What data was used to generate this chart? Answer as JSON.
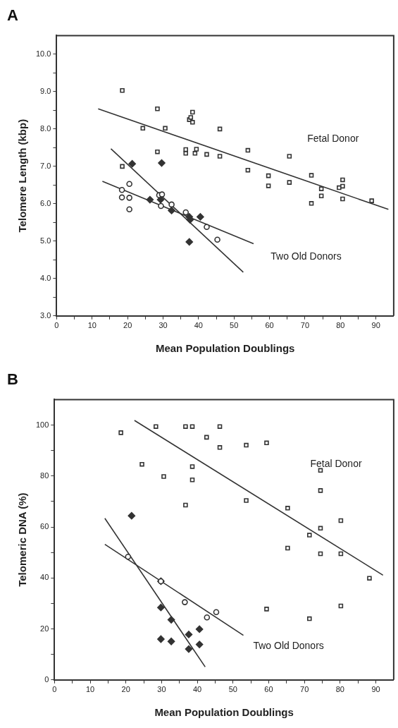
{
  "chart_data": [
    {
      "type": "scatter",
      "title": "A",
      "xlabel": "Mean Population Doublings",
      "ylabel": "Telomere Length (kbp)",
      "xlim": [
        0,
        95
      ],
      "ylim": [
        3,
        10.5
      ],
      "xticks": [
        0,
        {
          "value": 5,
          "label": null
        },
        10,
        {
          "value": 15,
          "label": null
        },
        20,
        {
          "value": 25,
          "label": null
        },
        30,
        {
          "value": 35,
          "label": null
        },
        40,
        {
          "value": 45,
          "label": null
        },
        50,
        {
          "value": 55,
          "label": null
        },
        60,
        {
          "value": 65,
          "label": null
        },
        70,
        {
          "value": 75,
          "label": null
        },
        80,
        {
          "value": 85,
          "label": null
        },
        90
      ],
      "yticks": [
        {
          "value": 3,
          "label": "3.0"
        },
        {
          "value": 3.5,
          "label": null
        },
        {
          "value": 4,
          "label": "4.0"
        },
        {
          "value": 4.5,
          "label": null
        },
        {
          "value": 5,
          "label": "5.0"
        },
        {
          "value": 5.5,
          "label": null
        },
        {
          "value": 6,
          "label": "6.0"
        },
        {
          "value": 6.5,
          "label": null
        },
        {
          "value": 7,
          "label": "7.0"
        },
        {
          "value": 7.5,
          "label": null
        },
        {
          "value": 8,
          "label": "8.0"
        },
        {
          "value": 8.5,
          "label": null
        },
        {
          "value": 9,
          "label": "9.0"
        },
        {
          "value": 9.5,
          "label": null
        },
        {
          "value": 10,
          "label": "10.0"
        }
      ],
      "grid": false,
      "legend": false,
      "annotations": [
        "Fetal Donor",
        "Two Old Donors"
      ],
      "series": [
        {
          "type": "scatter",
          "marker": "square",
          "color": "#333333",
          "x": [
            18.5,
            24.3,
            28.4,
            28.4,
            30.6,
            36.4,
            36.4,
            37.4,
            38.3,
            38.3,
            37.8,
            39.0,
            39.4,
            42.3,
            46.0,
            46.0,
            18.5,
            53.9,
            53.9,
            59.7,
            59.7,
            65.6,
            65.6,
            71.8,
            71.8,
            74.6,
            74.6,
            79.6,
            80.6,
            80.6,
            80.6,
            88.8
          ],
          "values": [
            9.03,
            8.02,
            8.54,
            7.39,
            8.02,
            7.45,
            7.35,
            8.25,
            8.45,
            8.18,
            8.31,
            7.35,
            7.46,
            7.32,
            7.27,
            8.0,
            7.0,
            7.43,
            6.9,
            6.75,
            6.48,
            7.27,
            6.57,
            6.76,
            6.01,
            6.4,
            6.21,
            6.43,
            6.64,
            6.47,
            6.13,
            6.08
          ]
        },
        {
          "type": "scatter",
          "marker": "circle",
          "color": "#333333",
          "x": [
            18.4,
            18.4,
            20.5,
            20.5,
            20.5,
            28.9,
            29.7,
            29.4,
            32.4,
            36.4,
            42.3,
            45.3
          ],
          "values": [
            6.37,
            6.17,
            6.53,
            6.16,
            5.85,
            6.23,
            6.25,
            5.94,
            5.98,
            5.77,
            5.38,
            5.04
          ]
        },
        {
          "type": "scatter",
          "marker": "diamond",
          "color": "#333333",
          "x": [
            21.3,
            29.6,
            26.3,
            29.3,
            32.4,
            37.4,
            37.6,
            40.5,
            37.4
          ],
          "values": [
            7.07,
            7.09,
            6.11,
            6.11,
            5.82,
            5.65,
            5.57,
            5.65,
            4.98
          ]
        },
        {
          "type": "line",
          "marker": "none",
          "color": "#333333",
          "x": [
            11.7,
            93.5
          ],
          "values": [
            8.54,
            5.85
          ]
        },
        {
          "type": "line",
          "marker": "none",
          "color": "#333333",
          "x": [
            12.9,
            55.5
          ],
          "values": [
            6.6,
            4.93
          ]
        },
        {
          "type": "line",
          "marker": "none",
          "color": "#333333",
          "x": [
            15.3,
            52.6
          ],
          "values": [
            7.47,
            4.17
          ]
        }
      ]
    },
    {
      "type": "scatter",
      "title": "B",
      "xlabel": "Mean Population Doublings",
      "ylabel": "Telomeric DNA (%)",
      "xlim": [
        0,
        95
      ],
      "ylim": [
        0,
        110
      ],
      "xticks": [
        0,
        {
          "value": 5,
          "label": null
        },
        10,
        {
          "value": 15,
          "label": null
        },
        20,
        {
          "value": 25,
          "label": null
        },
        30,
        {
          "value": 35,
          "label": null
        },
        40,
        {
          "value": 45,
          "label": null
        },
        50,
        {
          "value": 55,
          "label": null
        },
        60,
        {
          "value": 65,
          "label": null
        },
        70,
        {
          "value": 75,
          "label": null
        },
        80,
        {
          "value": 85,
          "label": null
        },
        90
      ],
      "yticks": [
        0,
        {
          "value": 10,
          "label": null
        },
        20,
        {
          "value": 30,
          "label": null
        },
        40,
        {
          "value": 50,
          "label": null
        },
        60,
        {
          "value": 70,
          "label": null
        },
        80,
        {
          "value": 90,
          "label": null
        },
        100
      ],
      "grid": false,
      "legend": false,
      "annotations": [
        "Fetal Donor",
        "Two Old Donors"
      ],
      "series": [
        {
          "type": "scatter",
          "marker": "square",
          "color": "#333333",
          "x": [
            18.6,
            28.4,
            36.7,
            38.6,
            46.3,
            42.6,
            46.3,
            24.5,
            30.6,
            38.6,
            38.6,
            36.7,
            53.7,
            59.4,
            74.5,
            74.5,
            53.7,
            65.3,
            80.2,
            74.5,
            71.4,
            65.3,
            74.5,
            80.2,
            88.2,
            59.4,
            71.4,
            80.2
          ],
          "values": [
            97,
            99.4,
            99.4,
            99.4,
            99.4,
            95.2,
            91.2,
            84.6,
            79.8,
            83.7,
            78.5,
            68.6,
            92.1,
            93,
            82.2,
            74.3,
            70.4,
            67.4,
            62.5,
            59.5,
            56.8,
            51.7,
            49.5,
            49.5,
            39.9,
            27.8,
            24,
            29
          ]
        },
        {
          "type": "scatter",
          "marker": "circle",
          "color": "#333333",
          "x": [
            20.6,
            29.8,
            36.5,
            42.7,
            45.3
          ],
          "values": [
            48.3,
            38.7,
            30.5,
            24.5,
            26.6
          ]
        },
        {
          "type": "scatter",
          "marker": "diamond",
          "color": "#333333",
          "x": [
            21.6,
            29.8,
            29.8,
            32.7,
            37.6,
            40.6,
            40.6,
            37.6,
            29.8,
            32.7
          ],
          "values": [
            64.4,
            38.7,
            28.4,
            23.6,
            17.8,
            19.9,
            13.9,
            12.1,
            16,
            15.1
          ]
        },
        {
          "type": "line",
          "marker": "none",
          "color": "#333333",
          "x": [
            22.4,
            92
          ],
          "values": [
            101.8,
            41.1
          ]
        },
        {
          "type": "line",
          "marker": "none",
          "color": "#333333",
          "x": [
            14.1,
            52.9
          ],
          "values": [
            53.2,
            17.5
          ]
        },
        {
          "type": "line",
          "marker": "none",
          "color": "#333333",
          "x": [
            14.1,
            42.2
          ],
          "values": [
            63.4,
            5.1
          ]
        }
      ]
    }
  ]
}
